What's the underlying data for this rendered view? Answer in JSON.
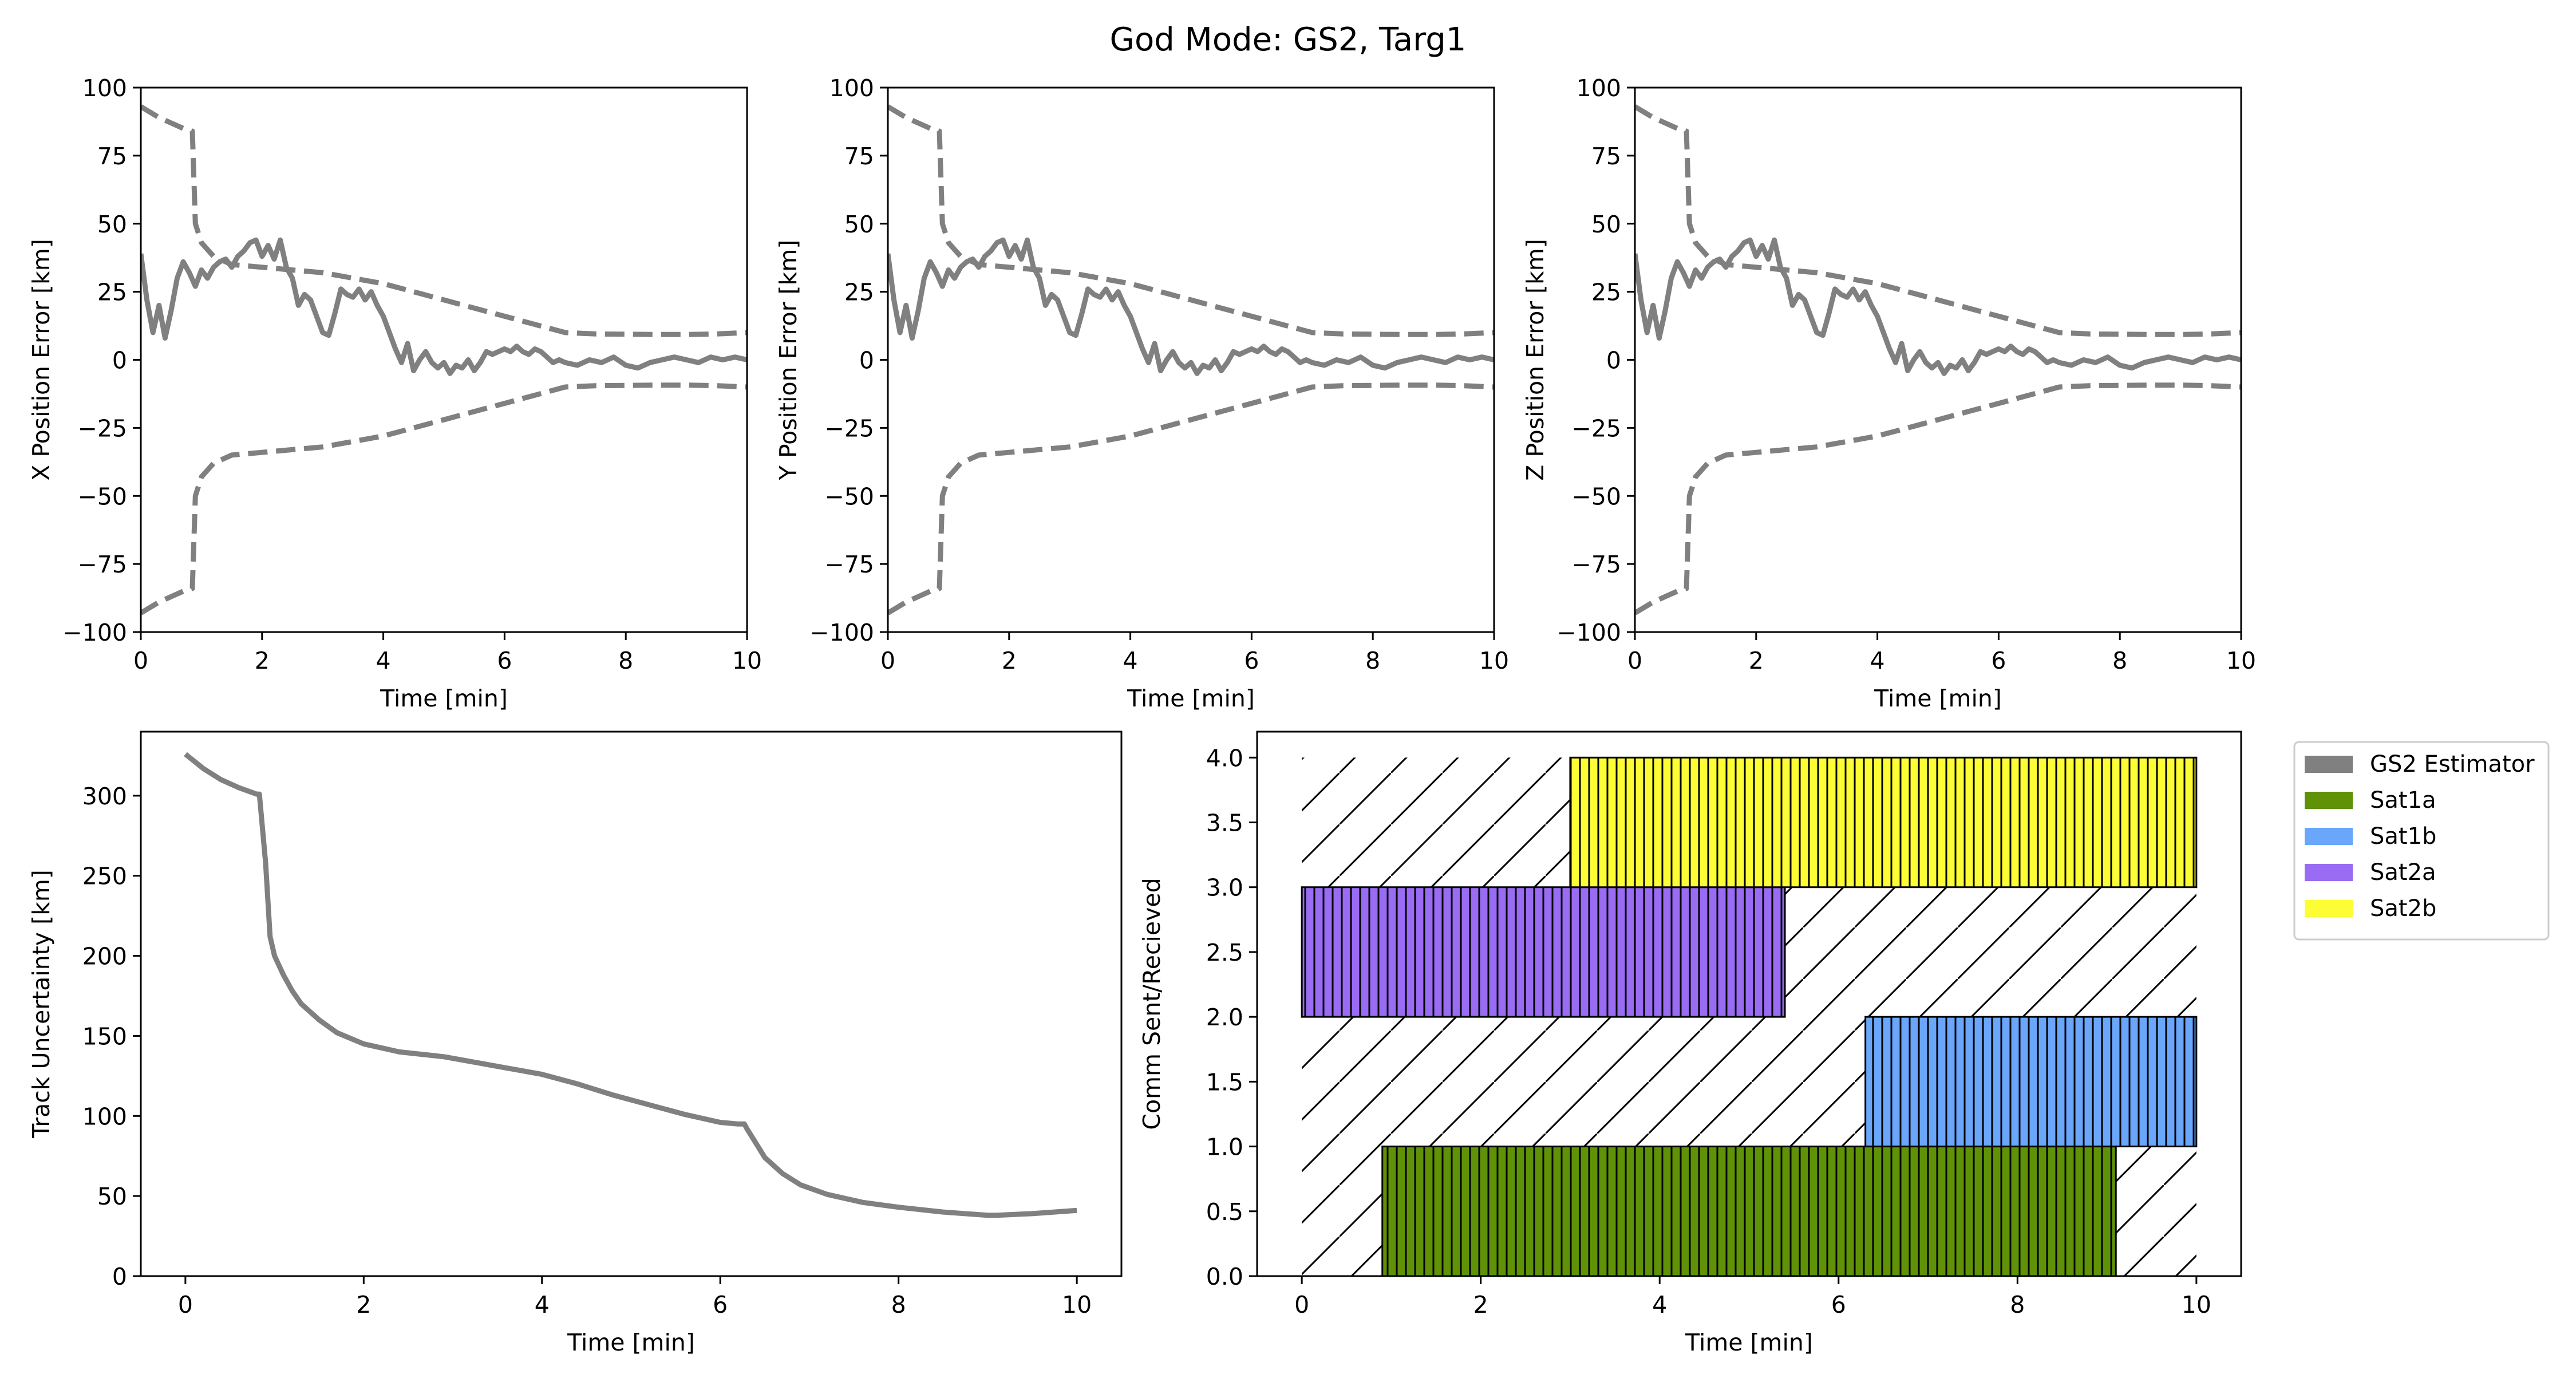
{
  "suptitle": "God Mode: GS2, Targ1",
  "colors": {
    "estimator": "#808080",
    "Sat1a": "#5f9207",
    "Sat1b": "#6aa6fa",
    "Sat2a": "#9a6bf3",
    "Sat2b": "#fdfd35"
  },
  "chart_data": [
    {
      "id": "x_error",
      "type": "line",
      "xlabel": "Time [min]",
      "ylabel": "X Position Error [km]",
      "xlim": [
        0,
        10
      ],
      "ylim": [
        -100,
        100
      ],
      "xticks": [
        0,
        2,
        4,
        6,
        8,
        10
      ],
      "yticks": [
        -100,
        -75,
        -50,
        -25,
        0,
        25,
        50,
        75,
        100
      ],
      "grid": false,
      "series": [
        {
          "style": "solid",
          "x": [
            0,
            0.1,
            0.2,
            0.3,
            0.4,
            0.5,
            0.6,
            0.7,
            0.8,
            0.9,
            1.0,
            1.1,
            1.2,
            1.3,
            1.4,
            1.5,
            1.6,
            1.7,
            1.8,
            1.9,
            2.0,
            2.1,
            2.2,
            2.3,
            2.4,
            2.5,
            2.6,
            2.7,
            2.8,
            2.9,
            3.0,
            3.1,
            3.2,
            3.3,
            3.4,
            3.5,
            3.6,
            3.7,
            3.8,
            3.9,
            4.0,
            4.1,
            4.2,
            4.3,
            4.4,
            4.5,
            4.6,
            4.7,
            4.8,
            4.9,
            5.0,
            5.1,
            5.2,
            5.3,
            5.4,
            5.5,
            5.6,
            5.7,
            5.8,
            5.9,
            6.0,
            6.1,
            6.2,
            6.3,
            6.4,
            6.5,
            6.6,
            6.7,
            6.8,
            6.9,
            7.0,
            7.2,
            7.4,
            7.6,
            7.8,
            8.0,
            8.2,
            8.4,
            8.6,
            8.8,
            9.0,
            9.2,
            9.4,
            9.6,
            9.8,
            10.0
          ],
          "y": [
            39,
            22,
            10,
            20,
            8,
            18,
            30,
            36,
            32,
            27,
            33,
            30,
            34,
            36,
            37,
            34,
            38,
            40,
            43,
            44,
            38,
            42,
            37,
            44,
            34,
            30,
            20,
            24,
            22,
            16,
            10,
            9,
            17,
            26,
            24,
            23,
            26,
            22,
            25,
            20,
            16,
            10,
            4,
            -1,
            6,
            -4,
            0,
            3,
            -1,
            -3,
            -1,
            -5,
            -2,
            -3,
            0,
            -4,
            -1,
            3,
            2,
            3,
            4,
            3,
            5,
            3,
            2,
            4,
            3,
            1,
            -1,
            0,
            -1,
            -2,
            0,
            -1,
            1,
            -2,
            -3,
            -1,
            0,
            1,
            0,
            -1,
            1,
            0,
            1,
            0
          ]
        },
        {
          "style": "dashed",
          "x": [
            0,
            0.3,
            0.5,
            0.7,
            0.85,
            0.9,
            1.0,
            1.2,
            1.5,
            2.0,
            2.5,
            3.0,
            3.5,
            4.0,
            4.5,
            5.0,
            5.5,
            6.0,
            6.5,
            7.0,
            7.5,
            8.0,
            8.5,
            9.0,
            9.5,
            10.0
          ],
          "y": [
            93,
            89,
            87,
            85,
            84,
            50,
            43,
            38,
            35,
            34,
            33,
            32,
            30,
            28,
            25,
            22,
            19,
            16,
            13,
            10,
            9.5,
            9.4,
            9.3,
            9.3,
            9.5,
            10
          ]
        },
        {
          "style": "dashed",
          "x": [
            0,
            0.3,
            0.5,
            0.7,
            0.85,
            0.9,
            1.0,
            1.2,
            1.5,
            2.0,
            2.5,
            3.0,
            3.5,
            4.0,
            4.5,
            5.0,
            5.5,
            6.0,
            6.5,
            7.0,
            7.5,
            8.0,
            8.5,
            9.0,
            9.5,
            10.0
          ],
          "y": [
            -93,
            -89,
            -87,
            -85,
            -84,
            -50,
            -43,
            -38,
            -35,
            -34,
            -33,
            -32,
            -30,
            -28,
            -25,
            -22,
            -19,
            -16,
            -13,
            -10,
            -9.5,
            -9.4,
            -9.3,
            -9.3,
            -9.5,
            -10
          ]
        }
      ]
    },
    {
      "id": "y_error",
      "type": "line",
      "xlabel": "Time [min]",
      "ylabel": "Y Position Error [km]",
      "xlim": [
        0,
        10
      ],
      "ylim": [
        -100,
        100
      ],
      "xticks": [
        0,
        2,
        4,
        6,
        8,
        10
      ],
      "yticks": [
        -100,
        -75,
        -50,
        -25,
        0,
        25,
        50,
        75,
        100
      ],
      "grid": false,
      "series": [
        {
          "style": "solid",
          "x": [
            0,
            0.1,
            0.2,
            0.3,
            0.4,
            0.5,
            0.6,
            0.7,
            0.8,
            0.9,
            1.0,
            1.1,
            1.2,
            1.3,
            1.4,
            1.5,
            1.6,
            1.7,
            1.8,
            1.9,
            2.0,
            2.1,
            2.2,
            2.3,
            2.4,
            2.5,
            2.6,
            2.7,
            2.8,
            2.9,
            3.0,
            3.1,
            3.2,
            3.3,
            3.4,
            3.5,
            3.6,
            3.7,
            3.8,
            3.9,
            4.0,
            4.1,
            4.2,
            4.3,
            4.4,
            4.5,
            4.6,
            4.7,
            4.8,
            4.9,
            5.0,
            5.1,
            5.2,
            5.3,
            5.4,
            5.5,
            5.6,
            5.7,
            5.8,
            5.9,
            6.0,
            6.1,
            6.2,
            6.3,
            6.4,
            6.5,
            6.6,
            6.7,
            6.8,
            6.9,
            7.0,
            7.2,
            7.4,
            7.6,
            7.8,
            8.0,
            8.2,
            8.4,
            8.6,
            8.8,
            9.0,
            9.2,
            9.4,
            9.6,
            9.8,
            10.0
          ],
          "y": [
            39,
            22,
            10,
            20,
            8,
            18,
            30,
            36,
            32,
            27,
            33,
            30,
            34,
            36,
            37,
            34,
            38,
            40,
            43,
            44,
            38,
            42,
            37,
            44,
            34,
            30,
            20,
            24,
            22,
            16,
            10,
            9,
            17,
            26,
            24,
            23,
            26,
            22,
            25,
            20,
            16,
            10,
            4,
            -1,
            6,
            -4,
            0,
            3,
            -1,
            -3,
            -1,
            -5,
            -2,
            -3,
            0,
            -4,
            -1,
            3,
            2,
            3,
            4,
            3,
            5,
            3,
            2,
            4,
            3,
            1,
            -1,
            0,
            -1,
            -2,
            0,
            -1,
            1,
            -2,
            -3,
            -1,
            0,
            1,
            0,
            -1,
            1,
            0,
            1,
            0
          ]
        },
        {
          "style": "dashed",
          "x": [
            0,
            0.3,
            0.5,
            0.7,
            0.85,
            0.9,
            1.0,
            1.2,
            1.5,
            2.0,
            2.5,
            3.0,
            3.5,
            4.0,
            4.5,
            5.0,
            5.5,
            6.0,
            6.5,
            7.0,
            7.5,
            8.0,
            8.5,
            9.0,
            9.5,
            10.0
          ],
          "y": [
            93,
            89,
            87,
            85,
            84,
            50,
            43,
            38,
            35,
            34,
            33,
            32,
            30,
            28,
            25,
            22,
            19,
            16,
            13,
            10,
            9.5,
            9.4,
            9.3,
            9.3,
            9.5,
            10
          ]
        },
        {
          "style": "dashed",
          "x": [
            0,
            0.3,
            0.5,
            0.7,
            0.85,
            0.9,
            1.0,
            1.2,
            1.5,
            2.0,
            2.5,
            3.0,
            3.5,
            4.0,
            4.5,
            5.0,
            5.5,
            6.0,
            6.5,
            7.0,
            7.5,
            8.0,
            8.5,
            9.0,
            9.5,
            10.0
          ],
          "y": [
            -93,
            -89,
            -87,
            -85,
            -84,
            -50,
            -43,
            -38,
            -35,
            -34,
            -33,
            -32,
            -30,
            -28,
            -25,
            -22,
            -19,
            -16,
            -13,
            -10,
            -9.5,
            -9.4,
            -9.3,
            -9.3,
            -9.5,
            -10
          ]
        }
      ]
    },
    {
      "id": "z_error",
      "type": "line",
      "xlabel": "Time [min]",
      "ylabel": "Z Position Error [km]",
      "xlim": [
        0,
        10
      ],
      "ylim": [
        -100,
        100
      ],
      "xticks": [
        0,
        2,
        4,
        6,
        8,
        10
      ],
      "yticks": [
        -100,
        -75,
        -50,
        -25,
        0,
        25,
        50,
        75,
        100
      ],
      "grid": false,
      "series": [
        {
          "style": "solid",
          "x": [
            0,
            0.1,
            0.2,
            0.3,
            0.4,
            0.5,
            0.6,
            0.7,
            0.8,
            0.9,
            1.0,
            1.1,
            1.2,
            1.3,
            1.4,
            1.5,
            1.6,
            1.7,
            1.8,
            1.9,
            2.0,
            2.1,
            2.2,
            2.3,
            2.4,
            2.5,
            2.6,
            2.7,
            2.8,
            2.9,
            3.0,
            3.1,
            3.2,
            3.3,
            3.4,
            3.5,
            3.6,
            3.7,
            3.8,
            3.9,
            4.0,
            4.1,
            4.2,
            4.3,
            4.4,
            4.5,
            4.6,
            4.7,
            4.8,
            4.9,
            5.0,
            5.1,
            5.2,
            5.3,
            5.4,
            5.5,
            5.6,
            5.7,
            5.8,
            5.9,
            6.0,
            6.1,
            6.2,
            6.3,
            6.4,
            6.5,
            6.6,
            6.7,
            6.8,
            6.9,
            7.0,
            7.2,
            7.4,
            7.6,
            7.8,
            8.0,
            8.2,
            8.4,
            8.6,
            8.8,
            9.0,
            9.2,
            9.4,
            9.6,
            9.8,
            10.0
          ],
          "y": [
            39,
            22,
            10,
            20,
            8,
            18,
            30,
            36,
            32,
            27,
            33,
            30,
            34,
            36,
            37,
            34,
            38,
            40,
            43,
            44,
            38,
            42,
            37,
            44,
            34,
            30,
            20,
            24,
            22,
            16,
            10,
            9,
            17,
            26,
            24,
            23,
            26,
            22,
            25,
            20,
            16,
            10,
            4,
            -1,
            6,
            -4,
            0,
            3,
            -1,
            -3,
            -1,
            -5,
            -2,
            -3,
            0,
            -4,
            -1,
            3,
            2,
            3,
            4,
            3,
            5,
            3,
            2,
            4,
            3,
            1,
            -1,
            0,
            -1,
            -2,
            0,
            -1,
            1,
            -2,
            -3,
            -1,
            0,
            1,
            0,
            -1,
            1,
            0,
            1,
            0
          ]
        },
        {
          "style": "dashed",
          "x": [
            0,
            0.3,
            0.5,
            0.7,
            0.85,
            0.9,
            1.0,
            1.2,
            1.5,
            2.0,
            2.5,
            3.0,
            3.5,
            4.0,
            4.5,
            5.0,
            5.5,
            6.0,
            6.5,
            7.0,
            7.5,
            8.0,
            8.5,
            9.0,
            9.5,
            10.0
          ],
          "y": [
            93,
            89,
            87,
            85,
            84,
            50,
            43,
            38,
            35,
            34,
            33,
            32,
            30,
            28,
            25,
            22,
            19,
            16,
            13,
            10,
            9.5,
            9.4,
            9.3,
            9.3,
            9.5,
            10
          ]
        },
        {
          "style": "dashed",
          "x": [
            0,
            0.3,
            0.5,
            0.7,
            0.85,
            0.9,
            1.0,
            1.2,
            1.5,
            2.0,
            2.5,
            3.0,
            3.5,
            4.0,
            4.5,
            5.0,
            5.5,
            6.0,
            6.5,
            7.0,
            7.5,
            8.0,
            8.5,
            9.0,
            9.5,
            10.0
          ],
          "y": [
            -93,
            -89,
            -87,
            -85,
            -84,
            -50,
            -43,
            -38,
            -35,
            -34,
            -33,
            -32,
            -30,
            -28,
            -25,
            -22,
            -19,
            -16,
            -13,
            -10,
            -9.5,
            -9.4,
            -9.3,
            -9.3,
            -9.5,
            -10
          ]
        }
      ]
    },
    {
      "id": "track_uncertainty",
      "type": "line",
      "xlabel": "Time [min]",
      "ylabel": "Track Uncertainty [km]",
      "xlim": [
        -0.5,
        10.5
      ],
      "ylim": [
        0,
        340
      ],
      "xticks": [
        0,
        2,
        4,
        6,
        8,
        10
      ],
      "yticks": [
        0,
        50,
        100,
        150,
        200,
        250,
        300
      ],
      "grid": false,
      "series": [
        {
          "style": "solid",
          "x": [
            0,
            0.2,
            0.4,
            0.6,
            0.8,
            0.83,
            0.9,
            0.95,
            1.0,
            1.1,
            1.2,
            1.3,
            1.5,
            1.7,
            2.0,
            2.4,
            2.9,
            3.2,
            3.6,
            4.0,
            4.4,
            4.8,
            5.2,
            5.6,
            6.0,
            6.2,
            6.27,
            6.3,
            6.4,
            6.5,
            6.7,
            6.9,
            7.2,
            7.6,
            8.0,
            8.5,
            9.0,
            9.1,
            9.5,
            10.0
          ],
          "y": [
            326,
            317,
            310,
            305,
            301,
            301,
            258,
            212,
            200,
            188,
            178,
            170,
            160,
            152,
            145,
            140,
            137,
            134,
            130,
            126,
            120,
            113,
            107,
            101,
            96,
            95,
            95,
            92,
            83,
            74,
            64,
            57,
            51,
            46,
            43,
            40,
            38,
            38,
            39,
            41
          ]
        }
      ]
    },
    {
      "id": "comm",
      "type": "bar",
      "xlabel": "Time [min]",
      "ylabel": "Comm Sent/Recieved",
      "xlim": [
        -0.5,
        10.5
      ],
      "ylim": [
        0,
        4.2
      ],
      "xticks": [
        0,
        2,
        4,
        6,
        8,
        10
      ],
      "yticks": [
        0.0,
        0.5,
        1.0,
        1.5,
        2.0,
        2.5,
        3.0,
        3.5,
        4.0
      ],
      "grid": false,
      "legend_position": "outside-right",
      "legend": [
        "GS2 Estimator",
        "Sat1a",
        "Sat1b",
        "Sat2a",
        "Sat2b"
      ],
      "background_window": {
        "x0": 0,
        "x1": 10,
        "y0": 0,
        "y1": 4
      },
      "bars": [
        {
          "name": "Sat1a",
          "start": 0.9,
          "end": 9.1,
          "y0": 0,
          "y1": 1
        },
        {
          "name": "Sat1b",
          "start": 6.3,
          "end": 10.0,
          "y0": 1,
          "y1": 2
        },
        {
          "name": "Sat2a",
          "start": 0.0,
          "end": 5.4,
          "y0": 2,
          "y1": 3
        },
        {
          "name": "Sat2b",
          "start": 3.0,
          "end": 10.0,
          "y0": 3,
          "y1": 4
        }
      ]
    }
  ]
}
